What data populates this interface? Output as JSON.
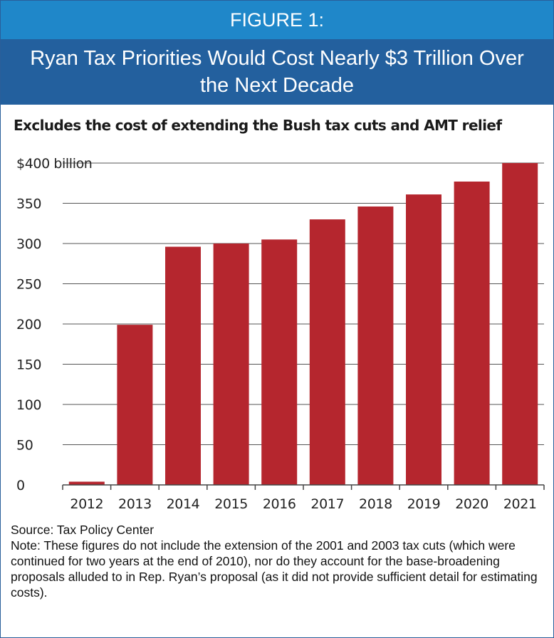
{
  "header": {
    "figure_label": "FIGURE 1:",
    "title": "Ryan Tax Priorities Would Cost Nearly $3 Trillion Over the Next Decade"
  },
  "subtitle": "Excludes the cost of extending the Bush tax cuts and AMT relief",
  "colors": {
    "banner_top": "#1f87c9",
    "banner_bottom": "#23609e",
    "bar": "#b5262e"
  },
  "chart_data": {
    "type": "bar",
    "title": "",
    "xlabel": "",
    "ylabel": "",
    "categories": [
      "2012",
      "2013",
      "2014",
      "2015",
      "2016",
      "2017",
      "2018",
      "2019",
      "2020",
      "2021"
    ],
    "values": [
      4,
      199,
      296,
      300,
      305,
      330,
      346,
      361,
      377,
      400
    ],
    "ylim": [
      0,
      400
    ],
    "yticks": [
      0,
      50,
      100,
      150,
      200,
      250,
      300,
      350,
      400
    ],
    "ytick_labels": [
      "0",
      "50",
      "100",
      "150",
      "200",
      "250",
      "300",
      "350",
      "$400 billion"
    ],
    "grid": true,
    "legend": "none"
  },
  "footer": {
    "source": "Source: Tax Policy Center",
    "note": "Note: These figures do not include the extension of the 2001 and 2003 tax cuts (which were continued for two years at the end of 2010), nor do they account for the base-broadening proposals alluded to in Rep. Ryan’s proposal (as it did not provide sufficient detail for estimating costs)."
  }
}
